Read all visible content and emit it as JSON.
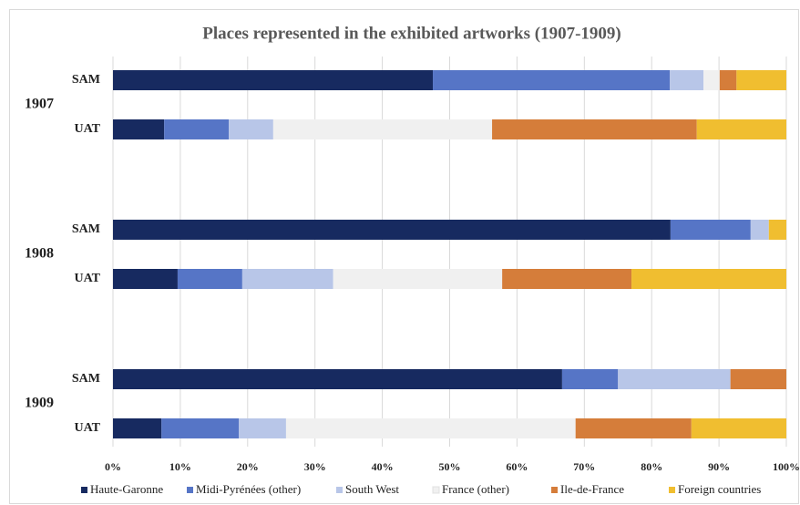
{
  "chart_data": {
    "type": "stacked-bar-horizontal",
    "title": "Places represented in the exhibited artworks (1907-1909)",
    "groups": [
      "1907",
      "1908",
      "1909"
    ],
    "categories": [
      "SAM",
      "UAT",
      "SAM",
      "UAT",
      "SAM",
      "UAT"
    ],
    "series": [
      {
        "name": "Haute-Garonne",
        "color": "#172a60",
        "values": [
          47.5,
          7.6,
          82.8,
          9.6,
          66.7,
          7.2
        ]
      },
      {
        "name": "Midi-Pyrénées (other)",
        "color": "#5675c6",
        "values": [
          35.2,
          9.6,
          11.9,
          9.6,
          8.3,
          11.5
        ]
      },
      {
        "name": "South West",
        "color": "#b8c6e8",
        "values": [
          5.0,
          6.6,
          2.7,
          13.5,
          16.7,
          7.0
        ]
      },
      {
        "name": "France (other)",
        "color": "#f0f0f0",
        "values": [
          2.4,
          32.5,
          0,
          25.1,
          0,
          43.0
        ]
      },
      {
        "name": "Ile-de-France",
        "color": "#d57d3a",
        "values": [
          2.5,
          30.4,
          0,
          19.2,
          8.3,
          17.2
        ]
      },
      {
        "name": "Foreign countries",
        "color": "#f0be30",
        "values": [
          7.4,
          13.3,
          2.6,
          23.0,
          0,
          14.1
        ]
      }
    ],
    "xlim": [
      0,
      100
    ],
    "xticks": [
      {
        "value": 0,
        "label": "0%"
      },
      {
        "value": 10,
        "label": "10%"
      },
      {
        "value": 20,
        "label": "20%"
      },
      {
        "value": 30,
        "label": "30%"
      },
      {
        "value": 40,
        "label": "40%"
      },
      {
        "value": 50,
        "label": "50%"
      },
      {
        "value": 60,
        "label": "60%"
      },
      {
        "value": 70,
        "label": "70%"
      },
      {
        "value": 80,
        "label": "80%"
      },
      {
        "value": 90,
        "label": "90%"
      },
      {
        "value": 100,
        "label": "100%"
      }
    ],
    "grid": true,
    "legend": "bottom"
  }
}
